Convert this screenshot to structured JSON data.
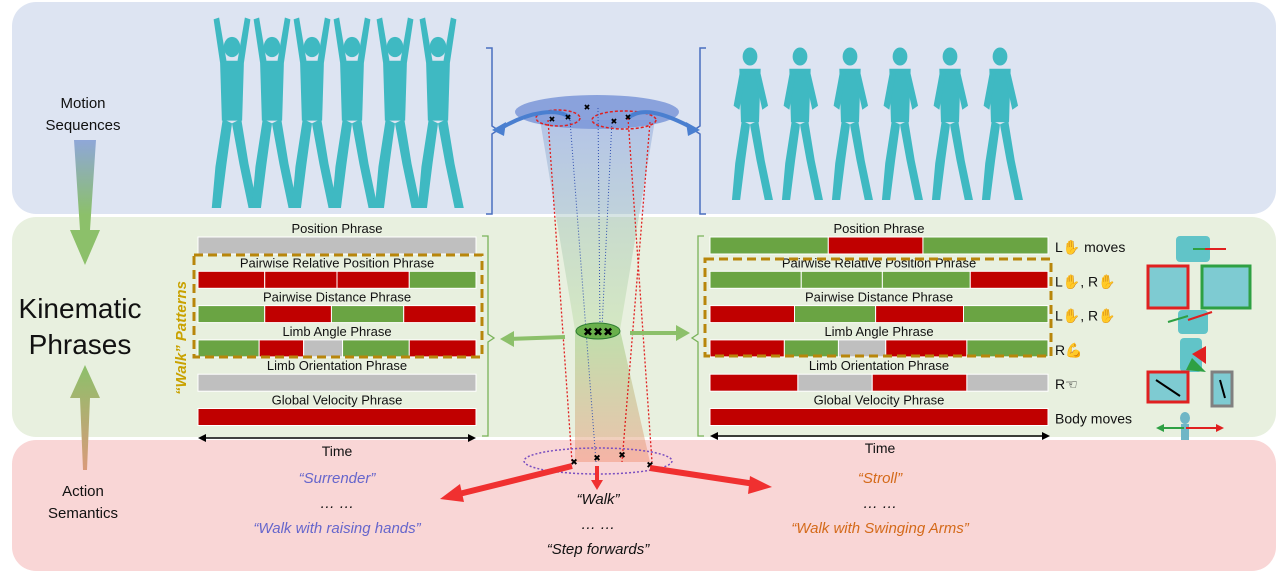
{
  "bands": {
    "motion": "Motion\nSequences",
    "kinematic": "Kinematic\nPhrases",
    "action": "Action\nSemantics"
  },
  "walk_patterns_label": "“Walk” Patterns",
  "time_label": "Time",
  "left_rows": [
    {
      "label": "Position Phrase",
      "segments": [
        [
          "gray",
          1
        ]
      ]
    },
    {
      "label": "Pairwise Relative Position Phrase",
      "segments": [
        [
          "red",
          0.24
        ],
        [
          "red",
          0.26
        ],
        [
          "red",
          0.26
        ],
        [
          "green",
          0.24
        ]
      ]
    },
    {
      "label": "Pairwise Distance Phrase",
      "segments": [
        [
          "green",
          0.24
        ],
        [
          "red",
          0.24
        ],
        [
          "green",
          0.26
        ],
        [
          "red",
          0.26
        ]
      ]
    },
    {
      "label": "Limb Angle Phrase",
      "segments": [
        [
          "green",
          0.22
        ],
        [
          "red",
          0.16
        ],
        [
          "gray",
          0.14
        ],
        [
          "green",
          0.24
        ],
        [
          "red",
          0.24
        ]
      ]
    },
    {
      "label": "Limb Orientation Phrase",
      "segments": [
        [
          "gray",
          1
        ]
      ]
    },
    {
      "label": "Global Velocity Phrase",
      "segments": [
        [
          "red",
          1
        ]
      ]
    }
  ],
  "right_rows": [
    {
      "label": "Position Phrase",
      "segments": [
        [
          "green",
          0.35
        ],
        [
          "red",
          0.28
        ],
        [
          "green",
          0.37
        ]
      ],
      "annotation": "L✋ moves"
    },
    {
      "label": "Pairwise Relative Position Phrase",
      "segments": [
        [
          "green",
          0.27
        ],
        [
          "green",
          0.24
        ],
        [
          "green",
          0.26
        ],
        [
          "red",
          0.23
        ]
      ],
      "annotation": "L✋, R✋"
    },
    {
      "label": "Pairwise Distance Phrase",
      "segments": [
        [
          "red",
          0.25
        ],
        [
          "green",
          0.24
        ],
        [
          "red",
          0.26
        ],
        [
          "green",
          0.25
        ]
      ],
      "annotation": "L✋, R✋"
    },
    {
      "label": "Limb Angle Phrase",
      "segments": [
        [
          "red",
          0.22
        ],
        [
          "green",
          0.16
        ],
        [
          "gray",
          0.14
        ],
        [
          "red",
          0.24
        ],
        [
          "green",
          0.24
        ]
      ],
      "annotation": "R💪"
    },
    {
      "label": "Limb Orientation Phrase",
      "segments": [
        [
          "red",
          0.26
        ],
        [
          "gray",
          0.22
        ],
        [
          "red",
          0.28
        ],
        [
          "gray",
          0.24
        ]
      ],
      "annotation": "R☜"
    },
    {
      "label": "Global Velocity Phrase",
      "segments": [
        [
          "red",
          1
        ]
      ],
      "annotation": "Body moves"
    }
  ],
  "semantics": {
    "left": [
      "“Surrender”",
      "… …",
      "“Walk with raising hands”"
    ],
    "center": [
      "“Walk”",
      "… …",
      "“Step forwards”"
    ],
    "right": [
      "“Stroll”",
      "… …",
      "“Walk with Swinging Arms”"
    ]
  },
  "colors": {
    "red": "#c00000",
    "green": "#6aa443",
    "gray": "#bfbfbf",
    "band_motion": "#dde4f2",
    "band_kinematic": "#e8f0df",
    "band_action": "#f9d6d6",
    "walk_box": "#b8860b",
    "blue_text": "#6666cc",
    "orange_text": "#d46a1a",
    "figure": "#3fb9c2"
  }
}
